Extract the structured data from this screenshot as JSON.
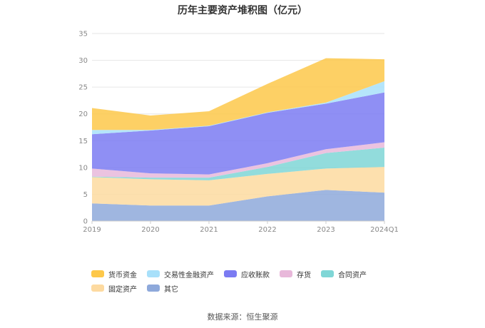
{
  "chart_data": {
    "type": "area",
    "stacked": true,
    "title": "历年主要资产堆积图（亿元）",
    "x": [
      "2019",
      "2020",
      "2021",
      "2022",
      "2023",
      "2024Q1"
    ],
    "ylim": [
      0,
      35
    ],
    "yticks": [
      0,
      5,
      10,
      15,
      20,
      25,
      30,
      35
    ],
    "grid": true,
    "legend_position": "bottom",
    "series": [
      {
        "name": "其它",
        "color": "#8EA9DB",
        "values": [
          3.3,
          2.9,
          2.9,
          4.6,
          5.8,
          5.3
        ]
      },
      {
        "name": "固定资产",
        "color": "#FDDAA0",
        "values": [
          4.9,
          4.9,
          4.7,
          4.2,
          4.0,
          4.8
        ]
      },
      {
        "name": "合同资产",
        "color": "#7FD6D6",
        "values": [
          0.1,
          0.3,
          0.5,
          1.3,
          2.9,
          3.6
        ]
      },
      {
        "name": "存货",
        "color": "#E8B8DA",
        "values": [
          1.5,
          0.8,
          0.6,
          0.7,
          0.7,
          1.0
        ]
      },
      {
        "name": "应收账款",
        "color": "#7B7BF2",
        "values": [
          6.4,
          8.0,
          9.0,
          9.4,
          8.5,
          9.3
        ]
      },
      {
        "name": "交易性金融资产",
        "color": "#A8E0FA",
        "values": [
          0.8,
          0.1,
          0.1,
          0.1,
          0.2,
          2.1
        ]
      },
      {
        "name": "货币资金",
        "color": "#FDC84A",
        "values": [
          4.1,
          2.7,
          2.7,
          5.3,
          8.3,
          4.1
        ]
      }
    ]
  },
  "legend": {
    "items": [
      {
        "name": "货币资金",
        "color": "#FDC84A"
      },
      {
        "name": "交易性金融资产",
        "color": "#A8E0FA"
      },
      {
        "name": "应收账款",
        "color": "#7B7BF2"
      },
      {
        "name": "存货",
        "color": "#E8B8DA"
      },
      {
        "name": "合同资产",
        "color": "#7FD6D6"
      },
      {
        "name": "固定资产",
        "color": "#FDDAA0"
      },
      {
        "name": "其它",
        "color": "#8EA9DB"
      }
    ]
  },
  "source_note": "数据来源：恒生聚源"
}
